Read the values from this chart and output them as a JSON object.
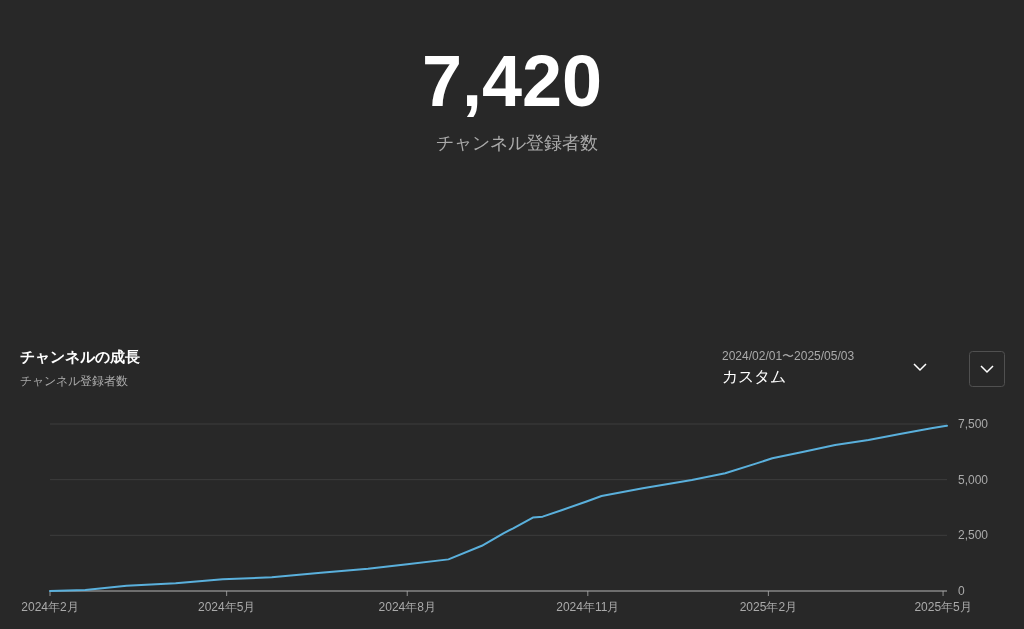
{
  "chart_data": {
    "type": "line",
    "title": "チャンネルの成長",
    "subtitle": "チャンネル登録者数",
    "annotations": [
      "7,420",
      "チャンネル登録者数",
      "2024/02/01〜2025/05/03",
      "カスタム"
    ],
    "x": [
      "2024-02-01",
      "2024-02-19",
      "2024-03-11",
      "2024-04-05",
      "2024-04-29",
      "2024-05-24",
      "2024-06-18",
      "2024-07-12",
      "2024-08-01",
      "2024-08-22",
      "2024-09-08",
      "2024-09-19",
      "2024-09-24",
      "2024-10-04",
      "2024-10-09",
      "2024-10-19",
      "2024-10-31",
      "2024-11-08",
      "2024-11-29",
      "2024-12-24",
      "2025-01-10",
      "2025-01-26",
      "2025-02-03",
      "2025-02-19",
      "2025-03-07",
      "2025-03-24",
      "2025-04-09",
      "2025-04-25",
      "2025-05-02",
      "2025-05-03"
    ],
    "series": [
      {
        "color": "#5ab0dc",
        "values": [
          0,
          45,
          240,
          345,
          525,
          615,
          820,
          1000,
          1200,
          1420,
          2030,
          2590,
          2815,
          3300,
          3340,
          3640,
          4010,
          4265,
          4610,
          4985,
          5285,
          5730,
          5960,
          6255,
          6555,
          6780,
          7050,
          7305,
          7410,
          7420
        ]
      }
    ],
    "xlim": [
      "2024-02-01",
      "2025-05-03"
    ],
    "xticks": [
      {
        "value": "2024-02-01",
        "label": "2024年2月"
      },
      {
        "value": "2024-05-01",
        "label": "2024年5月"
      },
      {
        "value": "2024-08-01",
        "label": "2024年8月"
      },
      {
        "value": "2024-11-01",
        "label": "2024年11月"
      },
      {
        "value": "2025-02-01",
        "label": "2025年2月"
      },
      {
        "value": "2025-05-01",
        "label": "2025年5月"
      }
    ],
    "ylim": [
      0,
      7500
    ],
    "yticks": [
      {
        "value": 0,
        "label": "0"
      },
      {
        "value": 2500,
        "label": "2,500"
      },
      {
        "value": 5000,
        "label": "5,000"
      },
      {
        "value": 7500,
        "label": "7,500"
      }
    ],
    "grid": "y"
  }
}
